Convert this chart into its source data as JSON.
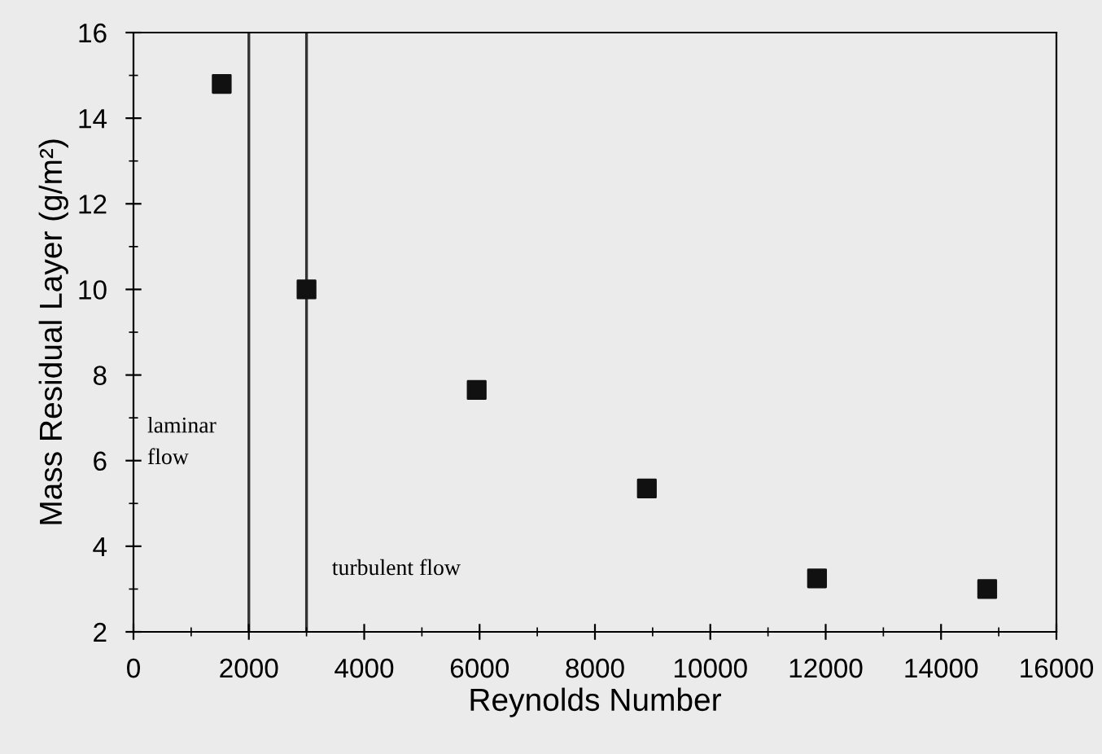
{
  "chart_data": {
    "type": "scatter",
    "xlabel": "Reynolds Number",
    "ylabel": "Mass Residual Layer (g/m²)",
    "x": [
      1530,
      3000,
      5950,
      8900,
      11850,
      14800
    ],
    "values": [
      14.8,
      10.0,
      7.65,
      5.35,
      3.25,
      3.0
    ],
    "color": "#111111",
    "marker": "square",
    "xlim": [
      0,
      16000
    ],
    "xticks": [
      0,
      2000,
      4000,
      6000,
      8000,
      10000,
      12000,
      14000,
      16000
    ],
    "ylim": [
      2,
      16
    ],
    "yticks": [
      2,
      4,
      6,
      8,
      10,
      12,
      14,
      16
    ],
    "ref_lines": [
      {
        "axis": "x",
        "value": 2000,
        "color": "#333333"
      },
      {
        "axis": "x",
        "value": 3000,
        "color": "#333333"
      }
    ],
    "annotations": [
      "laminar\nflow",
      "turbulent flow"
    ],
    "grid": false,
    "legend": false
  }
}
